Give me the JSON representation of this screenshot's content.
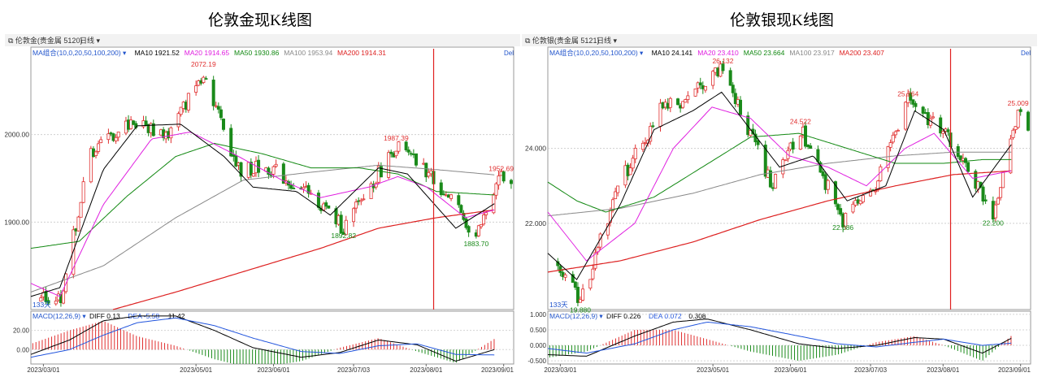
{
  "colors": {
    "up": "#e03030",
    "down": "#1a8a1a",
    "ma10": "#000000",
    "ma20": "#e020e0",
    "ma50": "#118811",
    "ma100": "#888888",
    "ma200": "#dd2020",
    "diff": "#000000",
    "dea": "#2255dd",
    "toolbar_text": "#333333",
    "ma_group": "#2255cc"
  },
  "charts": [
    {
      "title": "伦敦金现K线图",
      "toolbar": {
        "symbol": "伦敦金(贵金属 5120)",
        "period": "日线"
      },
      "ma_legend": {
        "group": "MA组合(10,0,20,50,100,200)",
        "ma10": "MA10 1921.52",
        "ma20": "MA20 1914.65",
        "ma50": "MA50 1930.86",
        "ma100": "MA100 1953.94",
        "ma200": "MA200 1914.31"
      },
      "corner_tag": "Del",
      "days_label": "133天",
      "price_ticks": [
        "2000.00",
        "1900.00"
      ],
      "macd_legend": {
        "label": "MACD(12,26,9)",
        "diff": "DIFF 0.13",
        "dea": "DEA -5.58",
        "macd": "11.42"
      },
      "macd_ticks": [
        "20.00",
        "0.00"
      ],
      "date_ticks": [
        "2023/03/01",
        "2023/05/01",
        "2023/06/01",
        "2023/07/03",
        "2023/08/01",
        "2023/09/01"
      ],
      "annotations": [
        {
          "text": "2072.19",
          "type": "high"
        },
        {
          "text": "1987.39",
          "type": "high"
        },
        {
          "text": "1952.69",
          "type": "high"
        },
        {
          "text": "1892.82",
          "type": "low"
        },
        {
          "text": "1883.70",
          "type": "low"
        }
      ],
      "chart_data": {
        "type": "candlestick",
        "y_range": [
          1800,
          2100
        ],
        "x_range": [
          "2023-02-24",
          "2023-09-05"
        ],
        "vertical_marker": "2023-08-04",
        "key_points": [
          {
            "date": "2023-02-28",
            "price": 1810
          },
          {
            "date": "2023-03-08",
            "price": 1815
          },
          {
            "date": "2023-03-20",
            "price": 1980
          },
          {
            "date": "2023-04-05",
            "price": 2015
          },
          {
            "date": "2023-04-20",
            "price": 2000
          },
          {
            "date": "2023-05-04",
            "price": 2072.19
          },
          {
            "date": "2023-05-18",
            "price": 1960
          },
          {
            "date": "2023-05-31",
            "price": 1962
          },
          {
            "date": "2023-06-22",
            "price": 1915
          },
          {
            "date": "2023-06-29",
            "price": 1892.82
          },
          {
            "date": "2023-07-20",
            "price": 1987.39
          },
          {
            "date": "2023-08-04",
            "price": 1950
          },
          {
            "date": "2023-08-21",
            "price": 1883.7
          },
          {
            "date": "2023-08-31",
            "price": 1952.69
          },
          {
            "date": "2023-09-04",
            "price": 1940
          }
        ],
        "ma10": [
          [
            0,
            1815
          ],
          [
            0.06,
            1825
          ],
          [
            0.15,
            1960
          ],
          [
            0.22,
            2010
          ],
          [
            0.31,
            2012
          ],
          [
            0.4,
            1975
          ],
          [
            0.46,
            1940
          ],
          [
            0.55,
            1935
          ],
          [
            0.62,
            1908
          ],
          [
            0.72,
            1962
          ],
          [
            0.78,
            1955
          ],
          [
            0.88,
            1893
          ],
          [
            0.96,
            1921
          ]
        ],
        "ma20": [
          [
            0,
            1830
          ],
          [
            0.06,
            1815
          ],
          [
            0.15,
            1920
          ],
          [
            0.25,
            1995
          ],
          [
            0.33,
            2003
          ],
          [
            0.42,
            1978
          ],
          [
            0.52,
            1948
          ],
          [
            0.6,
            1928
          ],
          [
            0.7,
            1940
          ],
          [
            0.76,
            1952
          ],
          [
            0.82,
            1940
          ],
          [
            0.9,
            1905
          ],
          [
            0.96,
            1914
          ]
        ],
        "ma50": [
          [
            0,
            1870
          ],
          [
            0.1,
            1878
          ],
          [
            0.2,
            1930
          ],
          [
            0.3,
            1975
          ],
          [
            0.38,
            1990
          ],
          [
            0.48,
            1978
          ],
          [
            0.58,
            1962
          ],
          [
            0.68,
            1962
          ],
          [
            0.76,
            1955
          ],
          [
            0.84,
            1935
          ],
          [
            0.96,
            1931
          ]
        ],
        "ma100": [
          [
            0,
            1820
          ],
          [
            0.15,
            1850
          ],
          [
            0.3,
            1905
          ],
          [
            0.44,
            1948
          ],
          [
            0.58,
            1957
          ],
          [
            0.72,
            1965
          ],
          [
            0.84,
            1960
          ],
          [
            0.96,
            1954
          ]
        ],
        "ma200": [
          [
            0.17,
            1800
          ],
          [
            0.3,
            1820
          ],
          [
            0.45,
            1845
          ],
          [
            0.6,
            1870
          ],
          [
            0.72,
            1893
          ],
          [
            0.84,
            1905
          ],
          [
            0.96,
            1914
          ]
        ],
        "macd": {
          "diff": [
            [
              0,
              -5
            ],
            [
              0.08,
              10
            ],
            [
              0.15,
              30
            ],
            [
              0.22,
              35
            ],
            [
              0.3,
              35
            ],
            [
              0.38,
              20
            ],
            [
              0.46,
              2
            ],
            [
              0.56,
              -8
            ],
            [
              0.64,
              -3
            ],
            [
              0.72,
              10
            ],
            [
              0.8,
              5
            ],
            [
              0.88,
              -12
            ],
            [
              0.96,
              0
            ]
          ],
          "dea": [
            [
              0,
              -8
            ],
            [
              0.08,
              0
            ],
            [
              0.15,
              15
            ],
            [
              0.22,
              28
            ],
            [
              0.3,
              33
            ],
            [
              0.38,
              25
            ],
            [
              0.46,
              12
            ],
            [
              0.56,
              -2
            ],
            [
              0.64,
              -4
            ],
            [
              0.72,
              4
            ],
            [
              0.8,
              6
            ],
            [
              0.88,
              -5
            ],
            [
              0.96,
              -5.58
            ]
          ],
          "range": [
            -15,
            40
          ]
        }
      }
    },
    {
      "title": "伦敦银现K线图",
      "toolbar": {
        "symbol": "伦敦银(贵金属 5121)",
        "period": "日线"
      },
      "ma_legend": {
        "group": "MA组合(10,0,20,50,100,200)",
        "ma10": "MA10 24.141",
        "ma20": "MA20 23.410",
        "ma50": "MA50 23.664",
        "ma100": "MA100 23.917",
        "ma200": "MA200 23.407"
      },
      "corner_tag": "Del",
      "days_label": "133天",
      "price_ticks": [
        "24.000",
        "22.000"
      ],
      "macd_legend": {
        "label": "MACD(12,26,9)",
        "diff": "DIFF 0.226",
        "dea": "DEA 0.072",
        "macd": "0.308"
      },
      "macd_ticks": [
        "1.000",
        "0.500",
        "0.000",
        "-0.500"
      ],
      "date_ticks": [
        "2023/03/01",
        "2023/05/01",
        "2023/06/01",
        "2023/07/03",
        "2023/08/01",
        "2023/09/01"
      ],
      "annotations": [
        {
          "text": "26.132",
          "type": "high"
        },
        {
          "text": "24.522",
          "type": "high"
        },
        {
          "text": "25.264",
          "type": "high"
        },
        {
          "text": "25.009",
          "type": "high"
        },
        {
          "text": "19.880",
          "type": "low"
        },
        {
          "text": "22.086",
          "type": "low"
        },
        {
          "text": "22.200",
          "type": "low"
        }
      ],
      "chart_data": {
        "type": "candlestick",
        "y_range": [
          19.7,
          26.7
        ],
        "x_range": [
          "2023-02-24",
          "2023-09-05"
        ],
        "vertical_marker": "2023-08-04",
        "key_points": [
          {
            "date": "2023-02-28",
            "price": 21.0
          },
          {
            "date": "2023-03-09",
            "price": 19.88
          },
          {
            "date": "2023-03-24",
            "price": 23.0
          },
          {
            "date": "2023-04-10",
            "price": 25.0
          },
          {
            "date": "2023-04-20",
            "price": 25.3
          },
          {
            "date": "2023-05-05",
            "price": 26.132
          },
          {
            "date": "2023-05-12",
            "price": 25.0
          },
          {
            "date": "2023-05-25",
            "price": 23.0
          },
          {
            "date": "2023-06-05",
            "price": 24.522
          },
          {
            "date": "2023-06-22",
            "price": 22.086
          },
          {
            "date": "2023-07-05",
            "price": 23.0
          },
          {
            "date": "2023-07-18",
            "price": 25.264
          },
          {
            "date": "2023-08-04",
            "price": 24.2
          },
          {
            "date": "2023-08-21",
            "price": 22.2
          },
          {
            "date": "2023-08-31",
            "price": 25.009
          },
          {
            "date": "2023-09-04",
            "price": 24.3
          }
        ],
        "ma10": [
          [
            0,
            21.2
          ],
          [
            0.06,
            20.5
          ],
          [
            0.15,
            22.5
          ],
          [
            0.22,
            24.5
          ],
          [
            0.3,
            25.0
          ],
          [
            0.36,
            25.5
          ],
          [
            0.42,
            24.5
          ],
          [
            0.48,
            23.5
          ],
          [
            0.55,
            23.8
          ],
          [
            0.62,
            22.6
          ],
          [
            0.7,
            23.0
          ],
          [
            0.76,
            25.0
          ],
          [
            0.82,
            24.5
          ],
          [
            0.88,
            22.7
          ],
          [
            0.96,
            24.1
          ]
        ],
        "ma20": [
          [
            0,
            22.3
          ],
          [
            0.08,
            21.0
          ],
          [
            0.18,
            22.0
          ],
          [
            0.26,
            24.0
          ],
          [
            0.34,
            25.1
          ],
          [
            0.42,
            24.8
          ],
          [
            0.5,
            23.8
          ],
          [
            0.58,
            23.5
          ],
          [
            0.66,
            23.0
          ],
          [
            0.74,
            24.0
          ],
          [
            0.8,
            24.4
          ],
          [
            0.88,
            23.2
          ],
          [
            0.96,
            23.4
          ]
        ],
        "ma50": [
          [
            0,
            23.1
          ],
          [
            0.06,
            22.6
          ],
          [
            0.12,
            22.3
          ],
          [
            0.22,
            22.7
          ],
          [
            0.32,
            23.5
          ],
          [
            0.42,
            24.3
          ],
          [
            0.52,
            24.4
          ],
          [
            0.62,
            24.0
          ],
          [
            0.72,
            23.6
          ],
          [
            0.82,
            23.6
          ],
          [
            0.9,
            23.7
          ],
          [
            0.96,
            23.7
          ]
        ],
        "ma100": [
          [
            0,
            22.2
          ],
          [
            0.15,
            22.4
          ],
          [
            0.3,
            22.8
          ],
          [
            0.44,
            23.3
          ],
          [
            0.58,
            23.6
          ],
          [
            0.72,
            23.8
          ],
          [
            0.84,
            23.9
          ],
          [
            0.96,
            23.9
          ]
        ],
        "ma200": [
          [
            0,
            20.7
          ],
          [
            0.15,
            21.0
          ],
          [
            0.3,
            21.5
          ],
          [
            0.44,
            22.1
          ],
          [
            0.58,
            22.6
          ],
          [
            0.72,
            23.0
          ],
          [
            0.84,
            23.3
          ],
          [
            0.96,
            23.4
          ]
        ],
        "macd": {
          "diff": [
            [
              0,
              -0.3
            ],
            [
              0.08,
              -0.35
            ],
            [
              0.18,
              0.3
            ],
            [
              0.26,
              0.75
            ],
            [
              0.33,
              0.85
            ],
            [
              0.42,
              0.5
            ],
            [
              0.52,
              0.05
            ],
            [
              0.6,
              -0.1
            ],
            [
              0.68,
              0.0
            ],
            [
              0.76,
              0.25
            ],
            [
              0.82,
              0.2
            ],
            [
              0.9,
              -0.25
            ],
            [
              0.96,
              0.226
            ]
          ],
          "dea": [
            [
              0,
              -0.1
            ],
            [
              0.08,
              -0.25
            ],
            [
              0.18,
              0.05
            ],
            [
              0.26,
              0.5
            ],
            [
              0.33,
              0.75
            ],
            [
              0.42,
              0.6
            ],
            [
              0.52,
              0.3
            ],
            [
              0.6,
              0.05
            ],
            [
              0.68,
              -0.05
            ],
            [
              0.76,
              0.1
            ],
            [
              0.82,
              0.2
            ],
            [
              0.9,
              0.0
            ],
            [
              0.96,
              0.072
            ]
          ],
          "range": [
            -0.6,
            1.1
          ]
        }
      }
    }
  ]
}
